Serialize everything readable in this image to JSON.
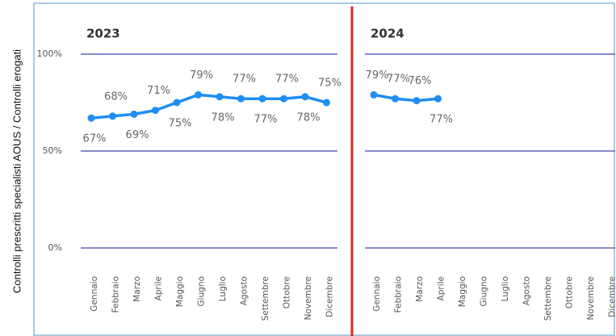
{
  "chart_data": [
    {
      "type": "line",
      "title": "2023",
      "y_label": "Controlli prescritti specialisti AOUS / Controlli erogati",
      "categories": [
        "Gennaio",
        "Febbraio",
        "Marzo",
        "Aprile",
        "Maggio",
        "Giugno",
        "Luglio",
        "Agosto",
        "Settembre",
        "Ottobre",
        "Novembre",
        "Dicembre"
      ],
      "values": [
        67,
        68,
        69,
        71,
        75,
        79,
        78,
        77,
        77,
        77,
        78,
        75
      ],
      "value_labels": [
        "67%",
        "68%",
        "69%",
        "71%",
        "75%",
        "79%",
        "78%",
        "77%",
        "77%",
        "77%",
        "78%",
        "75%"
      ],
      "color": "#1f8ef1",
      "ylim": [
        0,
        100
      ],
      "yticks": [
        {
          "value": 0,
          "label": "0%"
        },
        {
          "value": 50,
          "label": "50%"
        },
        {
          "value": 100,
          "label": "100%"
        }
      ],
      "grid": true
    },
    {
      "type": "line",
      "title": "2024",
      "categories": [
        "Gennaio",
        "Febbraio",
        "Marzo",
        "Aprile",
        "Maggio",
        "Giugno",
        "Luglio",
        "Agosto",
        "Settembre",
        "Ottobre",
        "Novembre",
        "Dicembre"
      ],
      "values": [
        79,
        77,
        76,
        77,
        null,
        null,
        null,
        null,
        null,
        null,
        null,
        null
      ],
      "value_labels": [
        "79%",
        "77%",
        "76%",
        "77%",
        null,
        null,
        null,
        null,
        null,
        null,
        null,
        null
      ],
      "color": "#1f8ef1",
      "ylim": [
        0,
        100
      ],
      "yticks": [
        0,
        50,
        100
      ],
      "grid": true
    }
  ]
}
